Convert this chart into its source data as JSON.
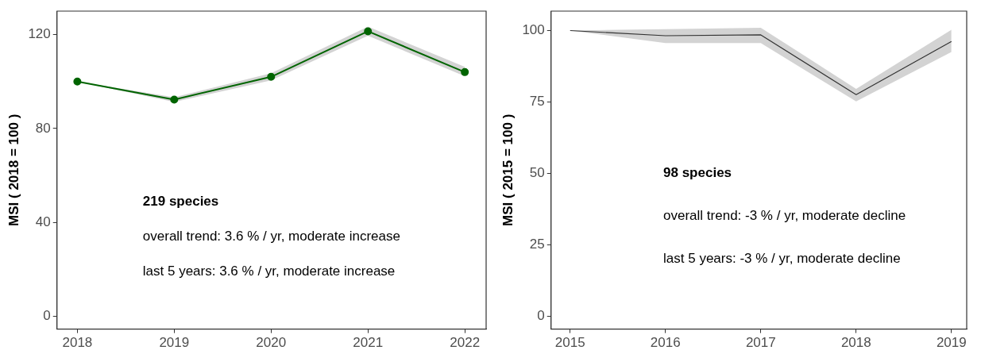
{
  "chart_data": [
    {
      "type": "line",
      "ylabel": "MSI ( 2018 = 100 )",
      "x": [
        2018,
        2019,
        2020,
        2021,
        2022
      ],
      "xlim": [
        2017.79,
        2022.22
      ],
      "xticks": [
        2018,
        2019,
        2020,
        2021,
        2022
      ],
      "ylim": [
        -5.5,
        130
      ],
      "yticks": [
        0,
        40,
        80,
        120
      ],
      "grid": false,
      "legend": false,
      "marker": "circle",
      "line_style": "solid",
      "series": [
        {
          "color": "#006400",
          "values": [
            100,
            92.3,
            102,
            121.4,
            104
          ],
          "lower": [
            100,
            91.3,
            100.5,
            119.5,
            102.3
          ],
          "upper": [
            100,
            93.3,
            103.5,
            123.4,
            106.2
          ]
        }
      ],
      "annotations": [
        "219 species",
        "overall trend: 3.6 % / yr, moderate increase",
        "last 5 years: 3.6 % / yr, moderate increase"
      ]
    },
    {
      "type": "line",
      "ylabel": "MSI ( 2015 = 100 )",
      "x": [
        2015,
        2016,
        2017,
        2018,
        2019
      ],
      "xlim": [
        2014.8,
        2019.16
      ],
      "xticks": [
        2015,
        2016,
        2017,
        2018,
        2019
      ],
      "ylim": [
        -4.4,
        106.8
      ],
      "yticks": [
        0,
        25,
        50,
        75,
        100
      ],
      "grid": false,
      "legend": false,
      "marker": "none",
      "line_style": "solid",
      "series": [
        {
          "color": "#333333",
          "values": [
            100,
            98.2,
            98.5,
            77.6,
            96.2
          ],
          "lower": [
            100,
            95.6,
            95.6,
            75.2,
            92.5
          ],
          "upper": [
            100,
            100.5,
            101,
            79.6,
            100.3
          ]
        }
      ],
      "annotations": [
        "98 species",
        "overall trend: -3 % / yr, moderate decline",
        "last 5 years: -3 % / yr, moderate decline"
      ]
    }
  ]
}
